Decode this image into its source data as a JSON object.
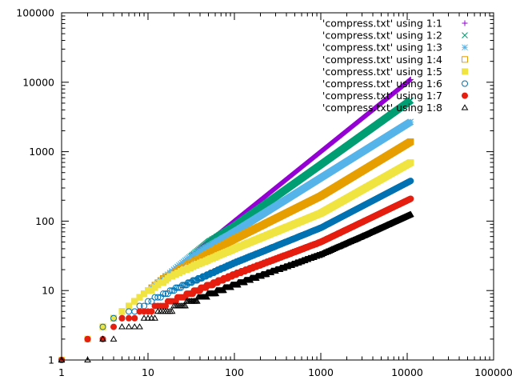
{
  "chart_data": {
    "type": "scatter",
    "title": "",
    "xlabel": "",
    "ylabel": "",
    "xscale": "log",
    "yscale": "log",
    "xlim": [
      1,
      100000
    ],
    "ylim": [
      1,
      100000
    ],
    "x_ticks": [
      "1",
      "10",
      "100",
      "1000",
      "10000",
      "100000"
    ],
    "y_ticks": [
      "1",
      "10",
      "100",
      "1000",
      "10000",
      "100000"
    ],
    "legend_position": "top-right",
    "grid": false,
    "x_range_of_data": [
      1,
      11000
    ],
    "series": [
      {
        "name": "'compress.txt' using 1:1",
        "color": "#9400d3",
        "marker": "plus",
        "points": [
          [
            1,
            1
          ],
          [
            10,
            10
          ],
          [
            100,
            100
          ],
          [
            1000,
            1000
          ],
          [
            11000,
            11000
          ]
        ]
      },
      {
        "name": "'compress.txt' using 1:2",
        "color": "#009e73",
        "marker": "cross",
        "points": [
          [
            1,
            1
          ],
          [
            50,
            50
          ],
          [
            100,
            85
          ],
          [
            1000,
            650
          ],
          [
            11000,
            5500
          ]
        ]
      },
      {
        "name": "'compress.txt' using 1:3",
        "color": "#56b4e9",
        "marker": "star",
        "points": [
          [
            1,
            1
          ],
          [
            30,
            30
          ],
          [
            100,
            70
          ],
          [
            1000,
            420
          ],
          [
            11000,
            2700
          ]
        ]
      },
      {
        "name": "'compress.txt' using 1:4",
        "color": "#e69f00",
        "marker": "open-square",
        "points": [
          [
            1,
            1
          ],
          [
            15,
            15
          ],
          [
            100,
            55
          ],
          [
            1000,
            230
          ],
          [
            11000,
            1400
          ]
        ]
      },
      {
        "name": "'compress.txt' using 1:5",
        "color": "#f0e442",
        "marker": "filled-square",
        "points": [
          [
            1,
            1
          ],
          [
            8,
            8
          ],
          [
            20,
            17
          ],
          [
            100,
            40
          ],
          [
            1000,
            130
          ],
          [
            11000,
            700
          ]
        ]
      },
      {
        "name": "'compress.txt' using 1:6",
        "color": "#0072b2",
        "marker": "open-circle",
        "points": [
          [
            1,
            1
          ],
          [
            3,
            3
          ],
          [
            5,
            4
          ],
          [
            10,
            7
          ],
          [
            100,
            25
          ],
          [
            1000,
            80
          ],
          [
            11000,
            380
          ]
        ]
      },
      {
        "name": "'compress.txt' using 1:7",
        "color": "#e51e10",
        "marker": "filled-circle",
        "points": [
          [
            1,
            1
          ],
          [
            2,
            2
          ],
          [
            3,
            2
          ],
          [
            4,
            3
          ],
          [
            6,
            4
          ],
          [
            10,
            5
          ],
          [
            100,
            17
          ],
          [
            1000,
            50
          ],
          [
            11000,
            210
          ]
        ]
      },
      {
        "name": "'compress.txt' using 1:8",
        "color": "#000000",
        "marker": "open-triangle",
        "points": [
          [
            1,
            1
          ],
          [
            2,
            1
          ],
          [
            3,
            2
          ],
          [
            7,
            3
          ],
          [
            10,
            4
          ],
          [
            100,
            12
          ],
          [
            1000,
            33
          ],
          [
            3000,
            60
          ],
          [
            11000,
            125
          ]
        ]
      }
    ]
  }
}
